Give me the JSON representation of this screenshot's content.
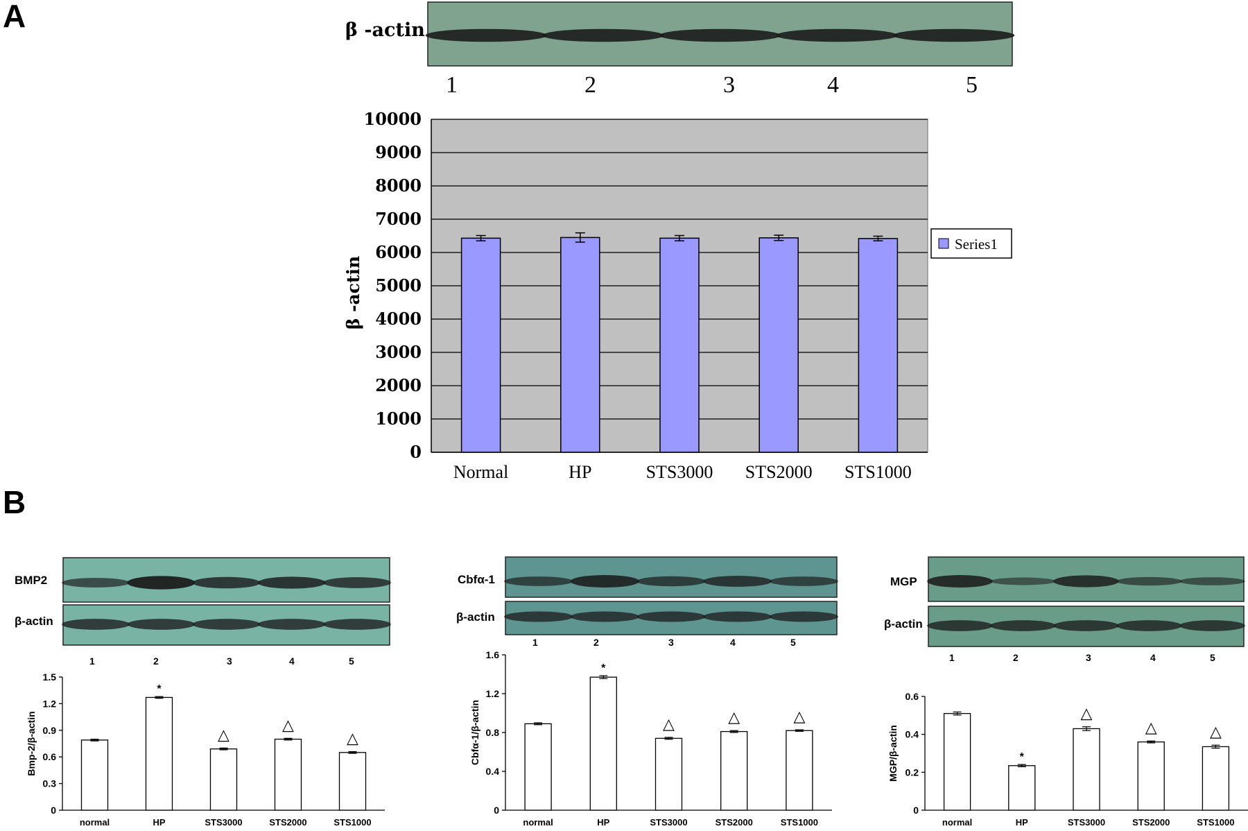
{
  "panels": {
    "a_letter": "A",
    "b_letter": "B"
  },
  "blots": {
    "a": {
      "label": "β -actin",
      "lanes": [
        "1",
        "2",
        "3",
        "4",
        "5"
      ]
    },
    "b1": {
      "protein_label": "BMP2",
      "control_label": "β-actin",
      "lanes": [
        "1",
        "2",
        "3",
        "4",
        "5"
      ]
    },
    "b2": {
      "protein_label": "Cbfα-1",
      "control_label": "β-actin",
      "lanes": [
        "1",
        "2",
        "3",
        "4",
        "5"
      ]
    },
    "b3": {
      "protein_label": "MGP",
      "control_label": "β-actin",
      "lanes": [
        "1",
        "2",
        "3",
        "4",
        "5"
      ]
    }
  },
  "colors": {
    "a_bar": "#9999ff",
    "a_plot_bg": "#c0c0c0",
    "blot_bg": "#6a9c8a",
    "band": "#1a1a1a"
  },
  "chart_data": [
    {
      "type": "bar",
      "title": "",
      "xlabel": "",
      "ylabel": "β -actin",
      "categories": [
        "Normal",
        "HP",
        "STS3000",
        "STS2000",
        "STS1000"
      ],
      "series": [
        {
          "name": "Series1",
          "values": [
            6430,
            6450,
            6430,
            6440,
            6420
          ],
          "errors": [
            80,
            140,
            80,
            80,
            70
          ]
        }
      ],
      "ylim": [
        0,
        10000
      ],
      "yticks": [
        0,
        1000,
        2000,
        3000,
        4000,
        5000,
        6000,
        7000,
        8000,
        9000,
        10000
      ],
      "grid": true,
      "legend": "right"
    },
    {
      "type": "bar",
      "title": "",
      "xlabel": "",
      "ylabel": "Bmp-2/β-actin",
      "categories": [
        "normal",
        "HP",
        "STS3000",
        "STS2000",
        "STS1000"
      ],
      "series": [
        {
          "values": [
            0.79,
            1.27,
            0.69,
            0.8,
            0.65
          ],
          "errors": [
            0.01,
            0.01,
            0.01,
            0.01,
            0.01
          ]
        }
      ],
      "markers": [
        "",
        "*",
        "△",
        "△",
        "△"
      ],
      "ylim": [
        0,
        1.5
      ],
      "yticks": [
        "0",
        "0.3",
        "0.6",
        "0.9",
        "1.2",
        "1.5"
      ],
      "grid": false
    },
    {
      "type": "bar",
      "title": "",
      "xlabel": "",
      "ylabel": "Cbfα-1/β-actin",
      "categories": [
        "normal",
        "HP",
        "STS3000",
        "STS2000",
        "STS1000"
      ],
      "series": [
        {
          "values": [
            0.89,
            1.37,
            0.74,
            0.81,
            0.82
          ],
          "errors": [
            0.01,
            0.015,
            0.01,
            0.01,
            0.008
          ]
        }
      ],
      "markers": [
        "",
        "*",
        "△",
        "△",
        "△"
      ],
      "ylim": [
        0,
        1.6
      ],
      "yticks": [
        "0",
        "0.4",
        "0.8",
        "1.2",
        "1.6"
      ],
      "grid": false
    },
    {
      "type": "bar",
      "title": "",
      "xlabel": "",
      "ylabel": "MGP/β-actin",
      "categories": [
        "normal",
        "HP",
        "STS3000",
        "STS2000",
        "STS1000"
      ],
      "series": [
        {
          "values": [
            0.51,
            0.235,
            0.43,
            0.36,
            0.335
          ],
          "errors": [
            0.008,
            0.006,
            0.01,
            0.005,
            0.008
          ]
        }
      ],
      "markers": [
        "",
        "*",
        "△",
        "△",
        "△"
      ],
      "ylim": [
        0,
        0.6
      ],
      "yticks": [
        "0",
        "0.2",
        "0.4",
        "0.6"
      ],
      "grid": false
    }
  ]
}
